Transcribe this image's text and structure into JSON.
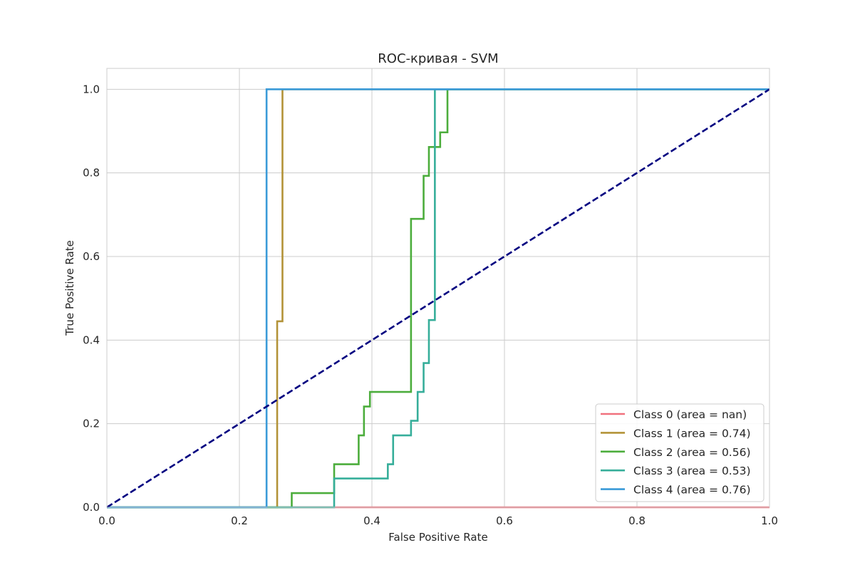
{
  "chart_data": {
    "type": "line",
    "title": "ROC-кривая - SVM",
    "xlabel": "False Positive Rate",
    "ylabel": "True Positive Rate",
    "xlim": [
      0.0,
      1.0
    ],
    "ylim": [
      0.0,
      1.05
    ],
    "grid": true,
    "legend_position": "lower-right",
    "x_ticks": [
      "0.0",
      "0.2",
      "0.4",
      "0.6",
      "0.8",
      "1.0"
    ],
    "y_ticks": [
      "0.0",
      "0.2",
      "0.4",
      "0.6",
      "0.8",
      "1.0"
    ],
    "series": [
      {
        "name": "Class 0 (area = nan)",
        "color": "#f0717d",
        "x": [
          0.0,
          1.0
        ],
        "y": [
          0.0,
          0.0
        ]
      },
      {
        "name": "Class 1 (area = 0.74)",
        "color": "#b39338",
        "x": [
          0.0,
          0.257,
          0.257,
          0.265,
          0.265,
          1.0
        ],
        "y": [
          0.0,
          0.0,
          0.445,
          0.445,
          1.0,
          1.0
        ]
      },
      {
        "name": "Class 2 (area = 0.56)",
        "color": "#4cad3c",
        "x": [
          0.0,
          0.279,
          0.279,
          0.343,
          0.343,
          0.38,
          0.38,
          0.388,
          0.388,
          0.397,
          0.397,
          0.459,
          0.459,
          0.478,
          0.478,
          0.486,
          0.486,
          0.503,
          0.503,
          0.514,
          0.514,
          1.0
        ],
        "y": [
          0.0,
          0.0,
          0.034,
          0.034,
          0.103,
          0.103,
          0.172,
          0.172,
          0.241,
          0.241,
          0.276,
          0.276,
          0.69,
          0.69,
          0.793,
          0.793,
          0.862,
          0.862,
          0.897,
          0.897,
          1.0,
          1.0
        ]
      },
      {
        "name": "Class 3 (area = 0.53)",
        "color": "#36ae9a",
        "x": [
          0.0,
          0.343,
          0.343,
          0.424,
          0.424,
          0.432,
          0.432,
          0.459,
          0.459,
          0.469,
          0.469,
          0.478,
          0.478,
          0.486,
          0.486,
          0.495,
          0.495,
          1.0
        ],
        "y": [
          0.0,
          0.0,
          0.069,
          0.069,
          0.103,
          0.103,
          0.172,
          0.172,
          0.207,
          0.207,
          0.276,
          0.276,
          0.345,
          0.345,
          0.448,
          0.448,
          1.0,
          1.0
        ]
      },
      {
        "name": "Class 4 (area = 0.76)",
        "color": "#3a9ad8",
        "x": [
          0.0,
          0.241,
          0.241,
          1.0
        ],
        "y": [
          0.0,
          0.0,
          1.0,
          1.0
        ]
      }
    ],
    "reference_line": {
      "color": "#000080",
      "style": "dashed",
      "x": [
        0.0,
        1.0
      ],
      "y": [
        0.0,
        1.0
      ]
    }
  }
}
